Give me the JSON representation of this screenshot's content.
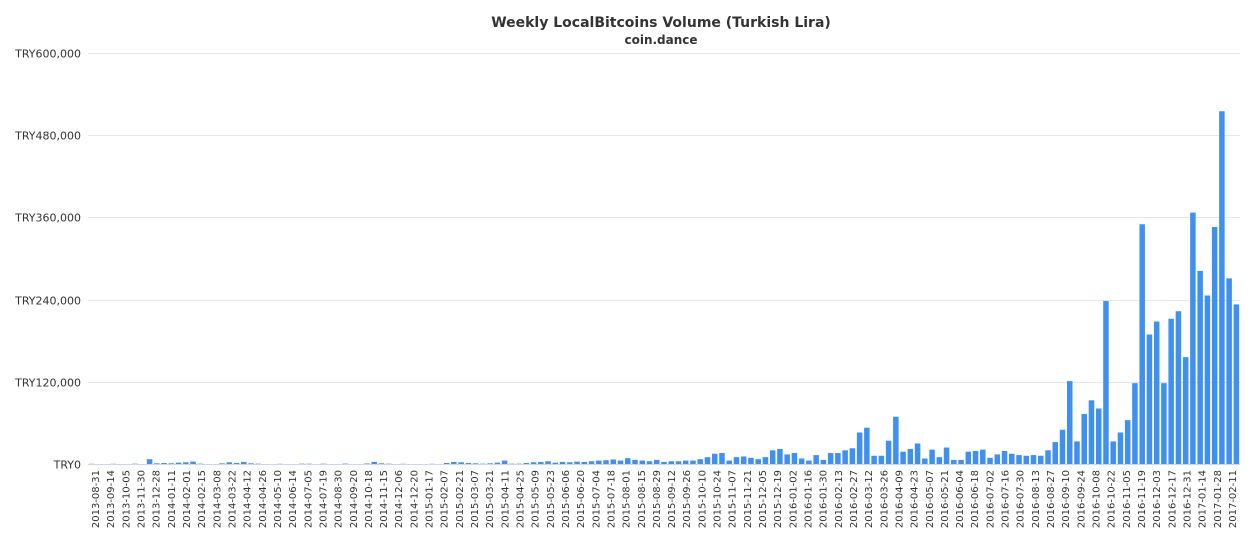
{
  "chart_data": {
    "type": "bar",
    "title": "Weekly LocalBitcoins Volume (Turkish Lira)",
    "subtitle": "coin.dance",
    "xlabel": "",
    "ylabel": "",
    "currency_prefix": "TRY",
    "ylim": [
      0,
      600000
    ],
    "yticks": [
      0,
      120000,
      240000,
      360000,
      480000,
      600000
    ],
    "ytick_labels": [
      "TRY0",
      "TRY120,000",
      "TRY240,000",
      "TRY360,000",
      "TRY480,000",
      "TRY600,000"
    ],
    "grid": true,
    "legend": false,
    "colors": {
      "bar": "#4090f0",
      "grid": "#e6e6e6",
      "axis": "#ccd6eb",
      "text": "#333333"
    },
    "x_labels_shown": [
      "2013-08-31",
      "2013-09-14",
      "2013-10-05",
      "2013-11-30",
      "2013-12-28",
      "2014-01-11",
      "2014-02-01",
      "2014-02-15",
      "2014-03-08",
      "2014-03-22",
      "2014-04-12",
      "2014-04-26",
      "2014-05-10",
      "2014-06-14",
      "2014-07-05",
      "2014-07-19",
      "2014-08-30",
      "2014-09-20",
      "2014-10-18",
      "2014-11-15",
      "2014-12-06",
      "2014-12-20",
      "2015-01-17",
      "2015-02-07",
      "2015-02-21",
      "2015-03-07",
      "2015-03-21",
      "2015-04-11",
      "2015-04-25",
      "2015-05-09",
      "2015-05-23",
      "2015-06-06",
      "2015-06-20",
      "2015-07-04",
      "2015-07-18",
      "2015-08-01",
      "2015-08-15",
      "2015-08-29",
      "2015-09-12",
      "2015-09-26",
      "2015-10-10",
      "2015-10-24",
      "2015-11-07",
      "2015-11-21",
      "2015-12-05",
      "2015-12-19",
      "2016-01-02",
      "2016-01-16",
      "2016-01-30",
      "2016-02-13",
      "2016-02-27",
      "2016-03-12",
      "2016-03-26",
      "2016-04-09",
      "2016-04-23",
      "2016-05-07",
      "2016-05-21",
      "2016-06-04",
      "2016-06-18",
      "2016-07-02",
      "2016-07-16",
      "2016-07-30",
      "2016-08-13",
      "2016-08-27",
      "2016-09-10",
      "2016-09-24",
      "2016-10-08",
      "2016-10-22",
      "2016-11-05",
      "2016-11-19",
      "2016-12-03",
      "2016-12-17",
      "2016-12-31",
      "2017-01-14",
      "2017-01-28",
      "2017-02-11"
    ],
    "values": [
      300,
      0,
      0,
      300,
      0,
      0,
      500,
      0,
      7000,
      1000,
      1500,
      1000,
      2000,
      2500,
      3500,
      500,
      0,
      0,
      1000,
      2500,
      1500,
      3000,
      1000,
      500,
      0,
      0,
      300,
      0,
      0,
      500,
      500,
      0,
      500,
      0,
      0,
      600,
      0,
      0,
      800,
      3000,
      1000,
      500,
      0,
      300,
      0,
      0,
      0,
      300,
      0,
      1500,
      3000,
      2500,
      1500,
      1000,
      500,
      1000,
      2000,
      5000,
      500,
      500,
      1500,
      2500,
      3000,
      4000,
      2000,
      3000,
      2500,
      3500,
      3000,
      4000,
      5000,
      5500,
      6500,
      5000,
      8500,
      6000,
      5000,
      4000,
      6000,
      3000,
      4000,
      4000,
      5000,
      5000,
      7000,
      10000,
      15000,
      16000,
      5000,
      10000,
      11000,
      9000,
      7000,
      10000,
      20000,
      22000,
      14000,
      16000,
      8000,
      5000,
      13000,
      6000,
      16000,
      16000,
      20000,
      23000,
      46000,
      53000,
      12000,
      12000,
      34000,
      69000,
      18000,
      22000,
      30000,
      8000,
      21000,
      10000,
      24000,
      6000,
      6000,
      18000,
      19000,
      21000,
      9000,
      14000,
      19000,
      15000,
      13000,
      12000,
      13000,
      12000,
      20000,
      32000,
      50000,
      121000,
      33000,
      73000,
      93000,
      81000,
      238000,
      33000,
      46000,
      64000,
      118000,
      350000,
      189000,
      208000,
      118000,
      212000,
      223000,
      156000,
      367000,
      282000,
      246000,
      346000,
      515000,
      271000,
      233000
    ]
  }
}
